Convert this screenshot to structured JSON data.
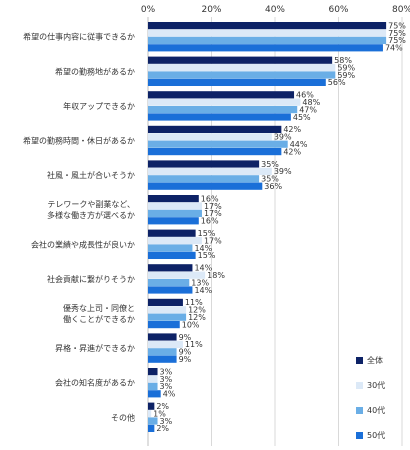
{
  "chart_data": {
    "type": "bar",
    "orientation": "horizontal",
    "xlim": [
      0,
      80
    ],
    "xticks": [
      "0%",
      "20%",
      "40%",
      "60%",
      "80%"
    ],
    "grid": true,
    "legend_position": "bottom-right",
    "categories": [
      [
        "希望の仕事内容に従事できるか"
      ],
      [
        "希望の勤務地があるか"
      ],
      [
        "年収アップできるか"
      ],
      [
        "希望の勤務時間・休日があるか"
      ],
      [
        "社風・風土が合いそうか"
      ],
      [
        "テレワークや副業など、",
        "多様な働き方が選べるか"
      ],
      [
        "会社の業績や成長性が良いか"
      ],
      [
        "社会貢献に繋がりそうか"
      ],
      [
        "優秀な上司・同僚と",
        "働くことができるか"
      ],
      [
        "昇格・昇進ができるか"
      ],
      [
        "会社の知名度があるか"
      ],
      [
        "その他"
      ]
    ],
    "series": [
      {
        "name": "全体",
        "color": "#0d2266",
        "values": [
          75,
          58,
          46,
          42,
          35,
          16,
          15,
          14,
          11,
          9,
          3,
          2
        ]
      },
      {
        "name": "30代",
        "color": "#dce9f7",
        "values": [
          75,
          59,
          48,
          39,
          39,
          17,
          17,
          18,
          12,
          11,
          3,
          1
        ]
      },
      {
        "name": "40代",
        "color": "#6aaee6",
        "values": [
          75,
          59,
          47,
          44,
          35,
          17,
          14,
          13,
          12,
          9,
          3,
          3
        ]
      },
      {
        "name": "50代",
        "color": "#1a6fd8",
        "values": [
          74,
          56,
          45,
          42,
          36,
          16,
          15,
          14,
          10,
          9,
          4,
          2
        ]
      }
    ]
  }
}
